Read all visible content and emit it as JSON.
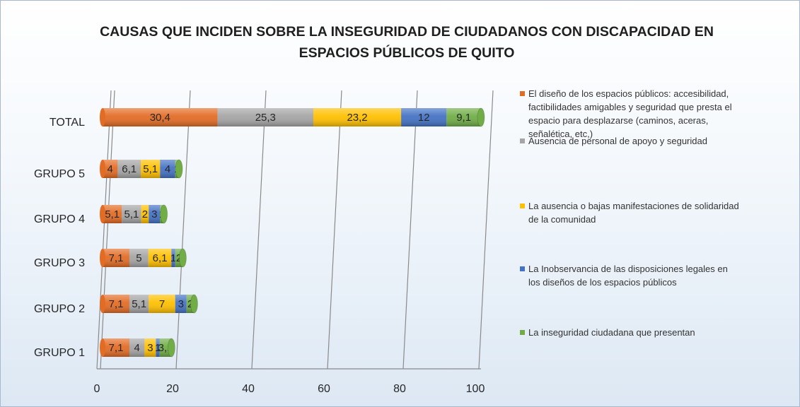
{
  "chart_data": {
    "type": "stacked_bar_horizontal",
    "title": "CAUSAS QUE INCIDEN SOBRE LA INSEGURIDAD DE CIUDADANOS CON DISCAPACIDAD EN ESPACIOS PÚBLICOS DE QUITO",
    "categories": [
      "GRUPO 1",
      "GRUPO 2",
      "GRUPO 3",
      "GRUPO 4",
      "GRUPO 5",
      "TOTAL"
    ],
    "series": [
      {
        "name": "El diseño de los espacios públicos: accesibilidad, factibilidades amigables y seguridad que presta el espacio para desplazarse (caminos, aceras, señalética, etc,)",
        "color": "#e36c25",
        "values": [
          7.1,
          7.1,
          7.1,
          5.1,
          4,
          30.4
        ],
        "value_labels": [
          "7,1",
          "7,1",
          "7,1",
          "5,1",
          "4",
          "30,4"
        ]
      },
      {
        "name": "Ausencia de personal de apoyo y seguridad",
        "color": "#a5a5a5",
        "values": [
          4,
          5.1,
          5,
          5.1,
          6.1,
          25.3
        ],
        "value_labels": [
          "4",
          "5,1",
          "5",
          "5,1",
          "6,1",
          "25,3"
        ]
      },
      {
        "name": "La ausencia o bajas manifestaciones de solidaridad de la comunidad",
        "color": "#ffc000",
        "values": [
          3,
          7,
          6.1,
          2,
          5.1,
          23.2
        ],
        "value_labels": [
          "3",
          "7",
          "6,1",
          "2",
          "5,1",
          "23,2"
        ]
      },
      {
        "name": "La Inobservancia de las disposiciones legales en los diseños de los espacios públicos",
        "color": "#4472c4",
        "values": [
          1,
          3,
          1,
          3,
          4,
          12
        ],
        "value_labels": [
          "1",
          "3",
          "1",
          "3",
          "4",
          "12"
        ]
      },
      {
        "name": "La inseguridad ciudadana que presentan",
        "color": "#70ad47",
        "values": [
          3.1,
          2,
          2,
          1,
          1,
          9.1
        ],
        "value_labels": [
          "3,1",
          "2",
          "2",
          "1",
          "1",
          "9,1"
        ]
      }
    ],
    "xlim": [
      0,
      100
    ],
    "xticks": [
      0,
      20,
      40,
      60,
      80,
      100
    ],
    "grid": true,
    "legend": "right"
  }
}
